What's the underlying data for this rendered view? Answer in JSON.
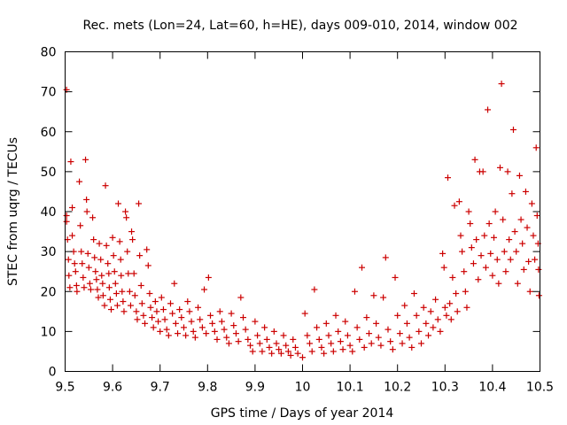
{
  "chart_data": {
    "type": "scatter",
    "title": "Rec. mets (Lon=24, Lat=60, h=HE), days 009-010, 2014, window 002",
    "xlabel": "GPS time / Days of year 2014",
    "ylabel": "STEC from uqrg / TECUs",
    "xlim": [
      9.5,
      10.5
    ],
    "ylim": [
      0,
      80
    ],
    "x_ticks": [
      "9.5",
      "9.6",
      "9.7",
      "9.8",
      "9.9",
      "10",
      "10.1",
      "10.2",
      "10.3",
      "10.4",
      "10.5"
    ],
    "y_ticks": [
      "0",
      "10",
      "20",
      "30",
      "40",
      "50",
      "60",
      "70",
      "80"
    ],
    "grid": false,
    "legend": "none",
    "marker": "plus",
    "color": "#cc0000",
    "points": [
      [
        9.503,
        70.5
      ],
      [
        9.503,
        39.0
      ],
      [
        9.503,
        37.5
      ],
      [
        9.505,
        33.0
      ],
      [
        9.507,
        28.0
      ],
      [
        9.508,
        24.0
      ],
      [
        9.51,
        21.0
      ],
      [
        9.512,
        52.5
      ],
      [
        9.515,
        41.0
      ],
      [
        9.515,
        34.0
      ],
      [
        9.518,
        30.0
      ],
      [
        9.52,
        27.0
      ],
      [
        9.522,
        25.0
      ],
      [
        9.524,
        21.5
      ],
      [
        9.525,
        20.0
      ],
      [
        9.53,
        47.5
      ],
      [
        9.532,
        36.5
      ],
      [
        9.534,
        30.0
      ],
      [
        9.536,
        27.0
      ],
      [
        9.538,
        23.5
      ],
      [
        9.54,
        21.0
      ],
      [
        9.543,
        53.0
      ],
      [
        9.545,
        43.0
      ],
      [
        9.546,
        40.0
      ],
      [
        9.548,
        29.5
      ],
      [
        9.55,
        26.0
      ],
      [
        9.552,
        22.0
      ],
      [
        9.554,
        20.5
      ],
      [
        9.558,
        38.5
      ],
      [
        9.56,
        33.0
      ],
      [
        9.562,
        28.5
      ],
      [
        9.564,
        25.0
      ],
      [
        9.566,
        23.0
      ],
      [
        9.568,
        20.5
      ],
      [
        9.57,
        18.5
      ],
      [
        9.572,
        32.0
      ],
      [
        9.575,
        28.0
      ],
      [
        9.577,
        24.0
      ],
      [
        9.579,
        22.0
      ],
      [
        9.58,
        19.0
      ],
      [
        9.583,
        16.5
      ],
      [
        9.585,
        46.5
      ],
      [
        9.587,
        31.5
      ],
      [
        9.59,
        27.0
      ],
      [
        9.592,
        24.5
      ],
      [
        9.593,
        21.0
      ],
      [
        9.595,
        18.0
      ],
      [
        9.597,
        15.5
      ],
      [
        9.6,
        33.5
      ],
      [
        9.602,
        29.0
      ],
      [
        9.604,
        25.0
      ],
      [
        9.606,
        22.0
      ],
      [
        9.608,
        19.5
      ],
      [
        9.61,
        16.5
      ],
      [
        9.612,
        42.0
      ],
      [
        9.615,
        32.5
      ],
      [
        9.617,
        28.0
      ],
      [
        9.618,
        24.0
      ],
      [
        9.62,
        20.0
      ],
      [
        9.622,
        17.5
      ],
      [
        9.624,
        15.0
      ],
      [
        9.627,
        40.0
      ],
      [
        9.629,
        38.5
      ],
      [
        9.631,
        30.0
      ],
      [
        9.633,
        24.5
      ],
      [
        9.636,
        20.0
      ],
      [
        9.638,
        16.5
      ],
      [
        9.64,
        35.0
      ],
      [
        9.642,
        33.0
      ],
      [
        9.645,
        24.5
      ],
      [
        9.647,
        19.0
      ],
      [
        9.65,
        15.0
      ],
      [
        9.652,
        13.0
      ],
      [
        9.655,
        42.0
      ],
      [
        9.657,
        29.0
      ],
      [
        9.66,
        21.5
      ],
      [
        9.662,
        17.0
      ],
      [
        9.665,
        14.0
      ],
      [
        9.668,
        12.0
      ],
      [
        9.672,
        30.5
      ],
      [
        9.675,
        26.5
      ],
      [
        9.678,
        19.5
      ],
      [
        9.68,
        16.0
      ],
      [
        9.683,
        13.5
      ],
      [
        9.686,
        11.0
      ],
      [
        9.69,
        17.5
      ],
      [
        9.693,
        15.0
      ],
      [
        9.696,
        12.5
      ],
      [
        9.7,
        10.0
      ],
      [
        9.703,
        18.5
      ],
      [
        9.707,
        15.5
      ],
      [
        9.71,
        13.0
      ],
      [
        9.714,
        10.5
      ],
      [
        9.718,
        9.0
      ],
      [
        9.722,
        17.0
      ],
      [
        9.726,
        14.5
      ],
      [
        9.73,
        22.0
      ],
      [
        9.733,
        12.0
      ],
      [
        9.737,
        9.5
      ],
      [
        9.741,
        15.5
      ],
      [
        9.745,
        13.5
      ],
      [
        9.75,
        11.0
      ],
      [
        9.754,
        9.0
      ],
      [
        9.758,
        17.5
      ],
      [
        9.762,
        15.0
      ],
      [
        9.766,
        12.5
      ],
      [
        9.77,
        10.0
      ],
      [
        9.774,
        8.5
      ],
      [
        9.78,
        16.0
      ],
      [
        9.784,
        13.0
      ],
      [
        9.789,
        11.0
      ],
      [
        9.793,
        20.5
      ],
      [
        9.797,
        9.5
      ],
      [
        9.802,
        23.5
      ],
      [
        9.806,
        14.0
      ],
      [
        9.81,
        12.0
      ],
      [
        9.815,
        10.0
      ],
      [
        9.82,
        8.0
      ],
      [
        9.826,
        15.0
      ],
      [
        9.83,
        12.5
      ],
      [
        9.835,
        10.5
      ],
      [
        9.84,
        8.5
      ],
      [
        9.845,
        7.0
      ],
      [
        9.85,
        14.5
      ],
      [
        9.855,
        11.5
      ],
      [
        9.86,
        9.5
      ],
      [
        9.865,
        7.5
      ],
      [
        9.87,
        18.5
      ],
      [
        9.875,
        13.5
      ],
      [
        9.88,
        10.5
      ],
      [
        9.885,
        8.0
      ],
      [
        9.89,
        6.5
      ],
      [
        9.895,
        5.0
      ],
      [
        9.9,
        12.5
      ],
      [
        9.905,
        9.0
      ],
      [
        9.91,
        7.0
      ],
      [
        9.915,
        5.0
      ],
      [
        9.92,
        11.0
      ],
      [
        9.925,
        8.0
      ],
      [
        9.93,
        6.0
      ],
      [
        9.935,
        4.5
      ],
      [
        9.94,
        10.0
      ],
      [
        9.945,
        7.0
      ],
      [
        9.95,
        5.5
      ],
      [
        9.955,
        4.5
      ],
      [
        9.96,
        9.0
      ],
      [
        9.965,
        6.5
      ],
      [
        9.97,
        5.0
      ],
      [
        9.975,
        4.0
      ],
      [
        9.98,
        8.0
      ],
      [
        9.985,
        6.0
      ],
      [
        9.99,
        4.5
      ],
      [
        10.0,
        3.5
      ],
      [
        10.005,
        14.5
      ],
      [
        10.01,
        9.0
      ],
      [
        10.015,
        7.0
      ],
      [
        10.02,
        5.0
      ],
      [
        10.025,
        20.5
      ],
      [
        10.03,
        11.0
      ],
      [
        10.035,
        8.0
      ],
      [
        10.04,
        6.0
      ],
      [
        10.045,
        4.5
      ],
      [
        10.05,
        12.0
      ],
      [
        10.055,
        9.0
      ],
      [
        10.06,
        7.0
      ],
      [
        10.065,
        5.0
      ],
      [
        10.07,
        14.0
      ],
      [
        10.075,
        10.0
      ],
      [
        10.08,
        7.5
      ],
      [
        10.085,
        5.5
      ],
      [
        10.09,
        12.5
      ],
      [
        10.095,
        9.0
      ],
      [
        10.1,
        6.5
      ],
      [
        10.105,
        5.0
      ],
      [
        10.11,
        20.0
      ],
      [
        10.115,
        11.0
      ],
      [
        10.12,
        8.0
      ],
      [
        10.125,
        26.0
      ],
      [
        10.13,
        6.0
      ],
      [
        10.135,
        13.5
      ],
      [
        10.14,
        9.5
      ],
      [
        10.145,
        7.0
      ],
      [
        10.15,
        19.0
      ],
      [
        10.155,
        12.0
      ],
      [
        10.16,
        8.5
      ],
      [
        10.165,
        6.5
      ],
      [
        10.17,
        18.5
      ],
      [
        10.175,
        28.5
      ],
      [
        10.18,
        10.5
      ],
      [
        10.185,
        7.5
      ],
      [
        10.19,
        5.5
      ],
      [
        10.195,
        23.5
      ],
      [
        10.2,
        14.0
      ],
      [
        10.205,
        9.5
      ],
      [
        10.21,
        7.0
      ],
      [
        10.215,
        16.5
      ],
      [
        10.22,
        12.0
      ],
      [
        10.225,
        8.5
      ],
      [
        10.23,
        6.0
      ],
      [
        10.235,
        19.5
      ],
      [
        10.24,
        14.0
      ],
      [
        10.245,
        10.0
      ],
      [
        10.25,
        7.0
      ],
      [
        10.255,
        16.0
      ],
      [
        10.26,
        12.0
      ],
      [
        10.265,
        9.0
      ],
      [
        10.27,
        15.0
      ],
      [
        10.275,
        11.0
      ],
      [
        10.28,
        18.0
      ],
      [
        10.285,
        13.0
      ],
      [
        10.29,
        10.0
      ],
      [
        10.295,
        29.5
      ],
      [
        10.298,
        26.0
      ],
      [
        10.3,
        16.0
      ],
      [
        10.303,
        14.0
      ],
      [
        10.306,
        48.5
      ],
      [
        10.31,
        17.0
      ],
      [
        10.313,
        13.0
      ],
      [
        10.316,
        23.5
      ],
      [
        10.32,
        41.5
      ],
      [
        10.323,
        19.5
      ],
      [
        10.326,
        15.0
      ],
      [
        10.33,
        42.5
      ],
      [
        10.333,
        34.0
      ],
      [
        10.336,
        30.0
      ],
      [
        10.34,
        25.0
      ],
      [
        10.343,
        20.0
      ],
      [
        10.346,
        16.0
      ],
      [
        10.35,
        40.0
      ],
      [
        10.353,
        37.0
      ],
      [
        10.356,
        31.0
      ],
      [
        10.36,
        27.0
      ],
      [
        10.363,
        53.0
      ],
      [
        10.366,
        33.0
      ],
      [
        10.37,
        23.0
      ],
      [
        10.373,
        50.0
      ],
      [
        10.376,
        29.0
      ],
      [
        10.38,
        50.0
      ],
      [
        10.383,
        34.0
      ],
      [
        10.386,
        26.0
      ],
      [
        10.39,
        65.5
      ],
      [
        10.393,
        37.0
      ],
      [
        10.396,
        29.5
      ],
      [
        10.4,
        24.0
      ],
      [
        10.403,
        33.5
      ],
      [
        10.406,
        40.0
      ],
      [
        10.41,
        28.0
      ],
      [
        10.413,
        22.0
      ],
      [
        10.416,
        51.0
      ],
      [
        10.419,
        72.0
      ],
      [
        10.422,
        38.0
      ],
      [
        10.425,
        30.0
      ],
      [
        10.428,
        25.0
      ],
      [
        10.432,
        50.0
      ],
      [
        10.435,
        33.0
      ],
      [
        10.438,
        28.0
      ],
      [
        10.441,
        44.5
      ],
      [
        10.444,
        60.5
      ],
      [
        10.447,
        35.0
      ],
      [
        10.45,
        30.0
      ],
      [
        10.453,
        22.0
      ],
      [
        10.457,
        49.0
      ],
      [
        10.46,
        38.0
      ],
      [
        10.463,
        32.0
      ],
      [
        10.466,
        25.5
      ],
      [
        10.47,
        45.0
      ],
      [
        10.473,
        36.0
      ],
      [
        10.476,
        27.5
      ],
      [
        10.479,
        20.0
      ],
      [
        10.483,
        42.0
      ],
      [
        10.486,
        34.0
      ],
      [
        10.489,
        28.0
      ],
      [
        10.492,
        56.0
      ],
      [
        10.494,
        39.0
      ],
      [
        10.496,
        32.0
      ],
      [
        10.497,
        25.5
      ],
      [
        10.498,
        19.0
      ]
    ]
  }
}
